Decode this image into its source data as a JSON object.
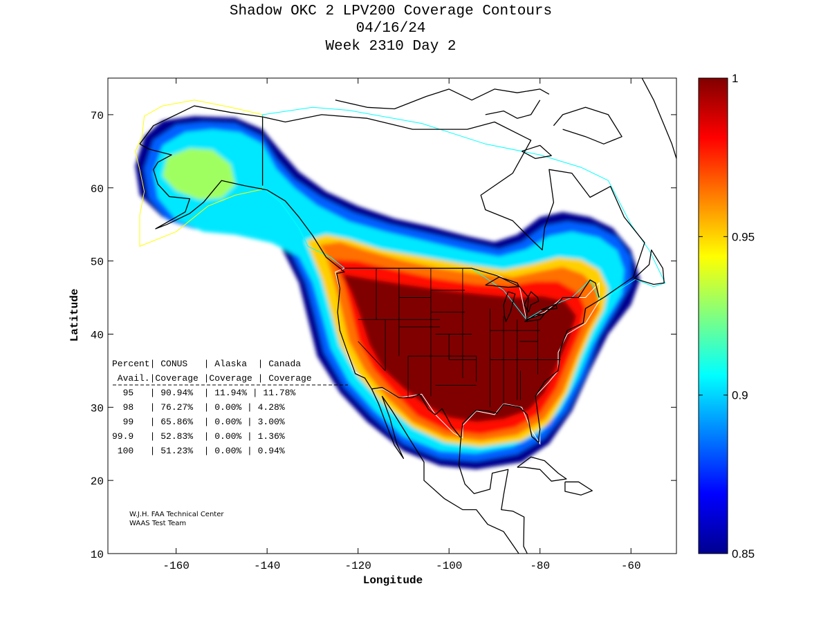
{
  "title": {
    "line1": "Shadow OKC 2 LPV200 Coverage Contours",
    "line2": "04/16/24",
    "line3": "Week 2310 Day 2"
  },
  "axes": {
    "xlabel": "Longitude",
    "ylabel": "Latitude",
    "xlim": [
      -175,
      -50
    ],
    "ylim": [
      10,
      75
    ],
    "xticks": [
      -160,
      -140,
      -120,
      -100,
      -80,
      -60
    ],
    "yticks": [
      10,
      20,
      30,
      40,
      50,
      60,
      70
    ],
    "xtick_labels": [
      "-160",
      "-140",
      "-120",
      "-100",
      "-80",
      "-60"
    ],
    "ytick_labels": [
      "10",
      "20",
      "30",
      "40",
      "50",
      "60",
      "70"
    ]
  },
  "colorbar": {
    "min": 0.85,
    "max": 1,
    "ticks": [
      {
        "value": 1,
        "label": "1"
      },
      {
        "value": 0.95,
        "label": "0.95"
      },
      {
        "value": 0.9,
        "label": "0.9"
      },
      {
        "value": 0.85,
        "label": "0.85"
      }
    ],
    "colormap": [
      "#00008f",
      "#0000ff",
      "#0080ff",
      "#00ffff",
      "#80ff80",
      "#ffff00",
      "#ff8000",
      "#ff0000",
      "#800000"
    ]
  },
  "availability_table": {
    "header1": "Percent| CONUS   | Alaska  | Canada",
    "header2": " Avail.|Coverage |Coverage | Coverage",
    "rows": [
      "  95   | 90.94%  | 11.94% | 11.78%",
      "  98   | 76.27%  | 0.00% | 4.28%",
      "  99   | 65.86%  | 0.00% | 3.00%",
      "99.9   | 52.83%  | 0.00% | 1.36%",
      " 100   | 51.23%  | 0.00% | 0.94%"
    ]
  },
  "credit": {
    "line1": "W.J.H. FAA Technical Center",
    "line2": "WAAS Test Team"
  },
  "colors": {
    "alaska_boundary": "#ffff00",
    "canada_boundary": "#00ffff",
    "conus_boundary": "#ffffff",
    "coastline": "#000000"
  }
}
